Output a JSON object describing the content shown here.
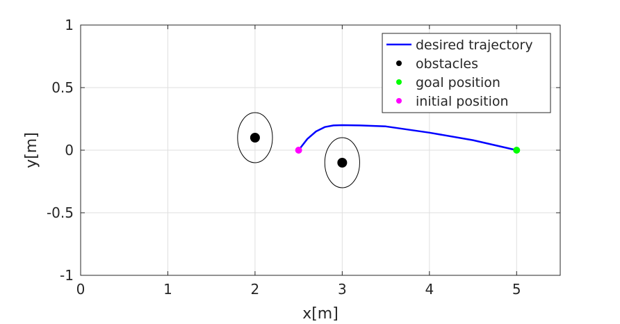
{
  "chart_data": {
    "type": "scatter",
    "xlabel": "x[m]",
    "ylabel": "y[m]",
    "xlim": [
      0,
      5.5
    ],
    "ylim": [
      -1,
      1
    ],
    "xticks": [
      "0",
      "1",
      "2",
      "3",
      "4",
      "5"
    ],
    "yticks": [
      "-1",
      "-0.5",
      "0",
      "0.5",
      "1"
    ],
    "grid": true,
    "legend_position": "top-right",
    "series": [
      {
        "name": "desired trajectory",
        "kind": "line",
        "color": "#0000ff",
        "x": [
          2.5,
          2.6,
          2.7,
          2.8,
          2.9,
          3.0,
          3.2,
          3.5,
          4.0,
          4.5,
          5.0
        ],
        "y": [
          0.0,
          0.09,
          0.15,
          0.185,
          0.198,
          0.2,
          0.198,
          0.19,
          0.14,
          0.08,
          0.0
        ]
      },
      {
        "name": "obstacles",
        "kind": "point",
        "color": "#000000",
        "x": [
          2.0,
          3.0
        ],
        "y": [
          0.1,
          -0.1
        ]
      },
      {
        "name": "goal position",
        "kind": "point",
        "color": "#00ff00",
        "x": [
          5.0
        ],
        "y": [
          0.0
        ]
      },
      {
        "name": "initial position",
        "kind": "point",
        "color": "#ff00ff",
        "x": [
          2.5
        ],
        "y": [
          0.0
        ]
      }
    ],
    "obstacle_regions": [
      {
        "cx": 2.0,
        "cy": 0.1,
        "rx": 0.2,
        "ry": 0.2,
        "color": "#000000"
      },
      {
        "cx": 3.0,
        "cy": -0.1,
        "rx": 0.2,
        "ry": 0.2,
        "color": "#000000"
      }
    ]
  }
}
